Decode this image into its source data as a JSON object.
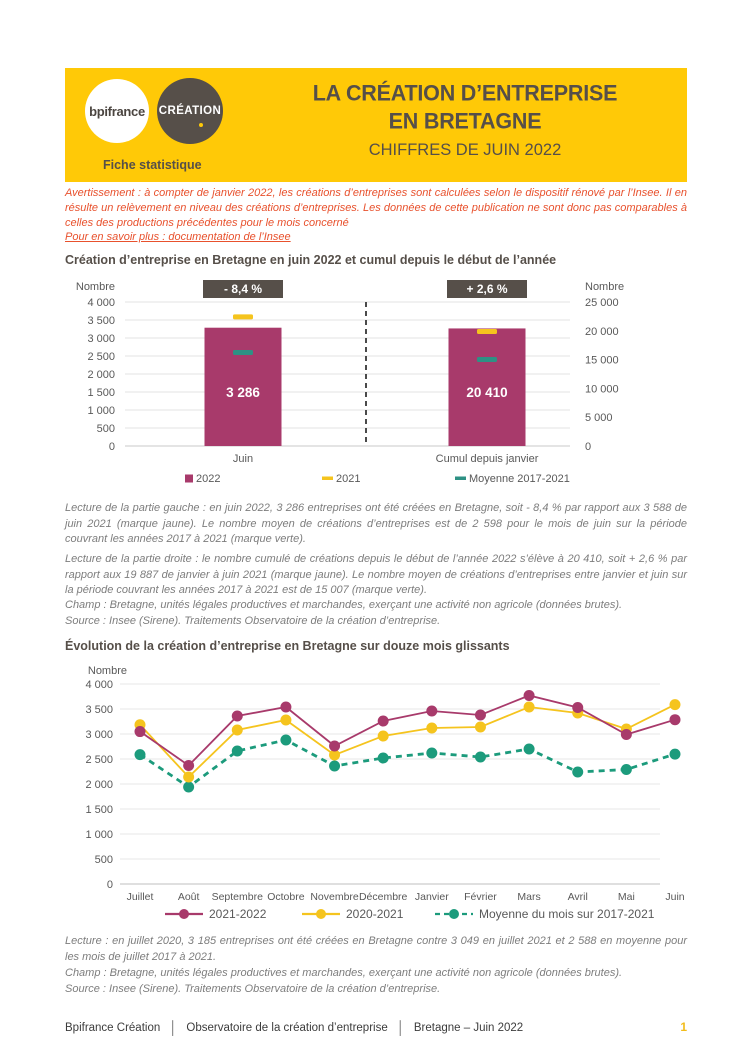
{
  "header": {
    "logo_primary": "bpifrance",
    "logo_secondary": "CRÉATION",
    "tagline": "Fiche statistique",
    "title_line1": "LA CRÉATION D’ENTREPRISE",
    "title_line2": "EN BRETAGNE",
    "subtitle": "CHIFFRES DE JUIN 2022"
  },
  "notice": {
    "warning": "Avertissement : à compter de janvier 2022, les créations d’entreprises sont calculées selon le dispositif rénové par l’Insee. Il en résulte un relèvement en niveau des créations d’entreprises. Les données de cette publication ne sont donc pas comparables à celles des productions précédentes pour le mois concerné",
    "link": "Pour en savoir plus : documentation de l’Insee"
  },
  "section1": {
    "title": "Création d’entreprise en Bretagne en juin 2022 et cumul depuis le début de l’année",
    "lecture_left": "Lecture de la partie gauche : en juin 2022, 3 286 entreprises ont été créées en Bretagne, soit - 8,4 % par rapport aux 3 588 de juin 2021 (marque jaune). Le nombre moyen de créations d’entreprises est de 2 598 pour le mois de juin sur la période couvrant les années 2017 à 2021 (marque verte).",
    "lecture_right": "Lecture de la partie droite : le nombre cumulé de créations depuis le début de l’année 2022 s’élève à 20 410, soit + 2,6 % par rapport aux 19 887 de janvier à juin 2021 (marque jaune). Le nombre moyen de créations d’entreprises entre janvier et juin sur la période couvrant les années 2017 à 2021 est de 15 007 (marque verte).",
    "champ": "Champ : Bretagne, unités légales productives et marchandes, exerçant une activité non agricole (données brutes).",
    "source": "Source : Insee (Sirene). Traitements Observatoire de la création d’entreprise."
  },
  "section2": {
    "title": "Évolution de la création d’entreprise en Bretagne sur douze mois glissants",
    "lecture": "Lecture : en juillet 2020, 3 185 entreprises ont été créées en Bretagne contre 3 049 en juillet 2021 et 2 588 en moyenne pour les mois de juillet 2017 à 2021.",
    "champ": "Champ : Bretagne, unités légales productives et marchandes, exerçant une activité non agricole (données brutes).",
    "source": "Source : Insee (Sirene). Traitements Observatoire de la création d’entreprise."
  },
  "footer": {
    "items": [
      "Bpifrance Création",
      "Observatoire de la création d’entreprise",
      "Bretagne – Juin 2022"
    ],
    "divider": "│",
    "page": "1"
  },
  "colors": {
    "banner_yellow": "#FFC907",
    "dark_brown": "#564F49",
    "magenta": "#A83A6B",
    "series_yellow": "#F5C41E",
    "series_green": "#1C9B7C",
    "marker_green_bar": "#2E9184",
    "warning_orange": "#E8512D",
    "grid": "#e3e3e3",
    "axis_text": "#595959"
  },
  "chart_data": [
    {
      "type": "bar",
      "title": "Création d’entreprise en Bretagne en juin 2022 et cumul depuis le début de l’année",
      "axis_left_label": "Nombre",
      "axis_right_label": "Nombre",
      "left_axis": {
        "min": 0,
        "max": 4000,
        "step": 500
      },
      "right_axis": {
        "min": 0,
        "max": 25000,
        "step": 5000
      },
      "categories": [
        "Juin",
        "Cumul depuis janvier"
      ],
      "bars": [
        {
          "category": "Juin",
          "axis": "left",
          "value_2022": 3286,
          "value_2021": 3588,
          "moyenne_2017_2021": 2598,
          "badge": "- 8,4 %"
        },
        {
          "category": "Cumul depuis janvier",
          "axis": "right",
          "value_2022": 20410,
          "value_2021": 19887,
          "moyenne_2017_2021": 15007,
          "badge": "+ 2,6 %"
        }
      ],
      "legend": [
        {
          "label": "2022",
          "marker": "square",
          "color": "#A83A6B"
        },
        {
          "label": "2021",
          "marker": "dash",
          "color": "#F5C41E"
        },
        {
          "label": "Moyenne 2017-2021",
          "marker": "dash",
          "color": "#2E9184"
        }
      ],
      "grid": true,
      "legend_position": "bottom"
    },
    {
      "type": "line",
      "title": "Évolution de la création d’entreprise en Bretagne sur douze mois glissants",
      "ylabel": "Nombre",
      "ylim": [
        0,
        4000
      ],
      "ystep": 500,
      "x": [
        "Juillet",
        "Août",
        "Septembre",
        "Octobre",
        "Novembre",
        "Décembre",
        "Janvier",
        "Février",
        "Mars",
        "Avril",
        "Mai",
        "Juin"
      ],
      "series": [
        {
          "name": "2021-2022",
          "style": "solid",
          "color": "#A83A6B",
          "values": [
            3049,
            2370,
            3360,
            3540,
            2760,
            3260,
            3460,
            3380,
            3770,
            3530,
            2990,
            3286
          ]
        },
        {
          "name": "2020-2021",
          "style": "solid",
          "color": "#F5C41E",
          "values": [
            3185,
            2140,
            3080,
            3280,
            2580,
            2960,
            3120,
            3140,
            3540,
            3420,
            3100,
            3588
          ]
        },
        {
          "name": "Moyenne du mois sur 2017-2021",
          "style": "dashed",
          "color": "#1C9B7C",
          "values": [
            2588,
            1940,
            2660,
            2880,
            2360,
            2520,
            2620,
            2540,
            2700,
            2240,
            2290,
            2598
          ]
        }
      ],
      "grid": true,
      "legend_position": "bottom"
    }
  ]
}
